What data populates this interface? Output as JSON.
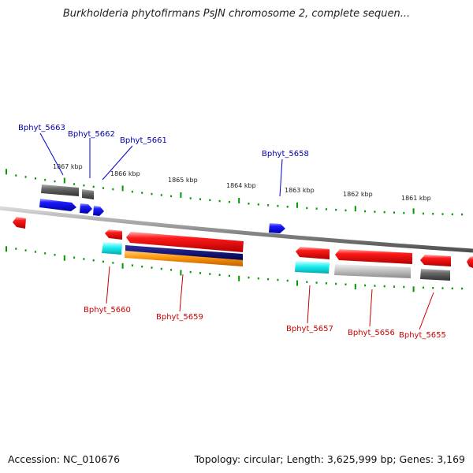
{
  "title": "Burkholderia phytofirmans PsJN chromosome 2, complete sequen...",
  "footer": {
    "accession": "Accession: NC_010676",
    "topology": "Topology: circular; Length: 3,625,999 bp; Genes: 3,169"
  },
  "colors": {
    "forward_gene": "#0000ff",
    "reverse_gene": "#ff0000",
    "forward_label": "#0000aa",
    "reverse_label": "#cc0000",
    "tick": "#009900",
    "backbone": "#888888"
  },
  "scale_labels": [
    "1867 kbp",
    "1866 kbp",
    "1865 kbp",
    "1864 kbp",
    "1863 kbp",
    "1862 kbp",
    "1861 kbp"
  ],
  "gene_labels_top": [
    "Bphyt_5663",
    "Bphyt_5662",
    "Bphyt_5661",
    "Bphyt_5658"
  ],
  "gene_labels_bottom": [
    "Bphyt_5660",
    "Bphyt_5659",
    "Bphyt_5657",
    "Bphyt_5656",
    "Bphyt_5655"
  ]
}
